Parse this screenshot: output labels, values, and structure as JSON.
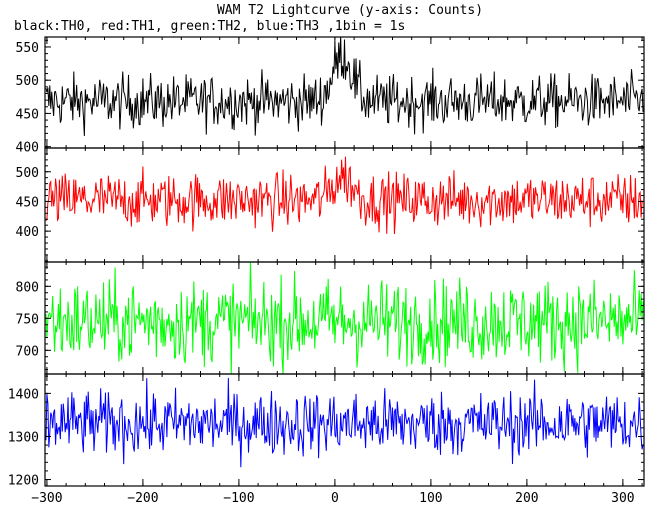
{
  "chart_data": {
    "type": "line",
    "title": "WAM T2 Lightcurve (y-axis: Counts)",
    "subtitle": "black:TH0, red:TH1, green:TH2, blue:TH3 ,1bin = 1s",
    "xlim": [
      -302,
      322
    ],
    "xticks": [
      -300,
      -200,
      -100,
      0,
      100,
      200,
      300
    ],
    "xlabel": "",
    "grid": false,
    "panels": [
      {
        "name": "TH0",
        "color": "#000000",
        "ylim": [
          398,
          565
        ],
        "yticks": [
          400,
          450,
          500,
          550
        ],
        "baseline": 468,
        "noise": 20,
        "flare": {
          "center": 8,
          "width": 10,
          "amp": 70
        },
        "series_sample": {
          "x": [
            -300,
            -250,
            -200,
            -150,
            -100,
            -50,
            0,
            5,
            10,
            20,
            50,
            100,
            150,
            200,
            250,
            300,
            320
          ],
          "y": [
            470,
            468,
            465,
            470,
            468,
            466,
            500,
            540,
            535,
            500,
            468,
            468,
            470,
            468,
            466,
            468,
            470
          ]
        }
      },
      {
        "name": "TH1",
        "color": "#ff0000",
        "ylim": [
          348,
          540
        ],
        "yticks": [
          400,
          450,
          500
        ],
        "baseline": 452,
        "noise": 23,
        "flare": {
          "center": 8,
          "width": 10,
          "amp": 40
        },
        "series_sample": {
          "x": [
            -300,
            -250,
            -200,
            -150,
            -100,
            -50,
            0,
            5,
            10,
            20,
            50,
            100,
            150,
            200,
            250,
            300,
            320
          ],
          "y": [
            455,
            452,
            450,
            452,
            448,
            450,
            470,
            490,
            485,
            462,
            452,
            452,
            450,
            452,
            450,
            452,
            455
          ]
        }
      },
      {
        "name": "TH2",
        "color": "#00ff00",
        "ylim": [
          663,
          838
        ],
        "yticks": [
          700,
          750,
          800
        ],
        "baseline": 745,
        "noise": 33,
        "flare": {
          "center": 8,
          "width": 10,
          "amp": 0
        },
        "series_sample": {
          "x": [
            -300,
            -250,
            -200,
            -150,
            -100,
            -50,
            0,
            50,
            100,
            150,
            200,
            250,
            300,
            320
          ],
          "y": [
            755,
            748,
            745,
            748,
            742,
            745,
            745,
            742,
            745,
            748,
            742,
            740,
            740,
            742
          ]
        }
      },
      {
        "name": "TH3",
        "color": "#0000ff",
        "ylim": [
          1185,
          1445
        ],
        "yticks": [
          1200,
          1300,
          1400
        ],
        "baseline": 1330,
        "noise": 38,
        "flare": {
          "center": 8,
          "width": 10,
          "amp": 0
        },
        "series_sample": {
          "x": [
            -300,
            -250,
            -200,
            -150,
            -100,
            -50,
            0,
            50,
            100,
            150,
            200,
            250,
            300,
            320
          ],
          "y": [
            1340,
            1335,
            1330,
            1332,
            1328,
            1330,
            1330,
            1325,
            1330,
            1328,
            1325,
            1322,
            1320,
            1325
          ]
        }
      }
    ]
  }
}
